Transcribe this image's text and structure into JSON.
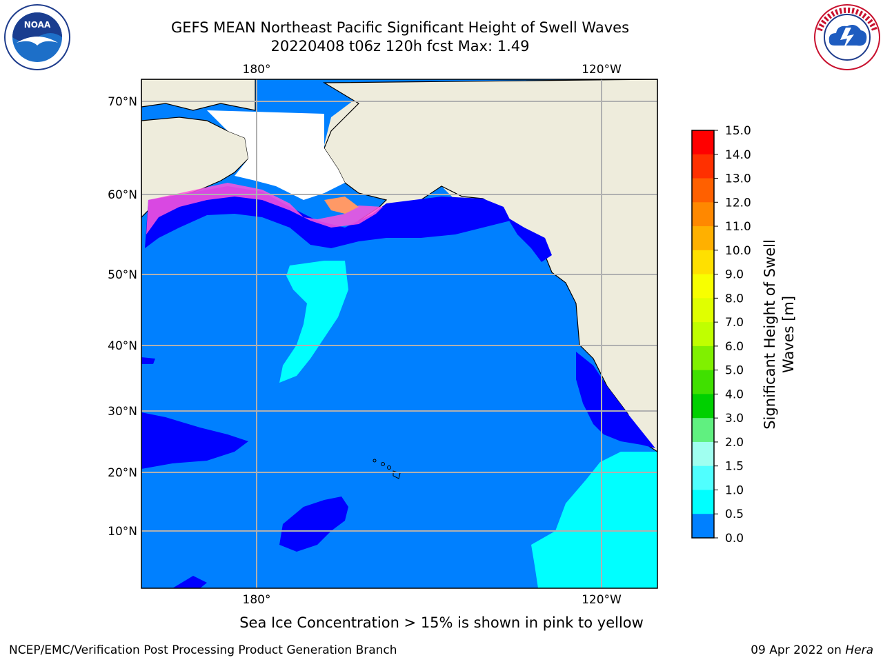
{
  "title_line1": "GEFS MEAN Northeast Pacific Significant Height of Swell Waves",
  "title_line2": "20220408 t06z 120h fcst   Max: 1.49",
  "logos": {
    "left": "noaa-logo",
    "right": "nws-logo"
  },
  "map": {
    "top_lon_labels": [
      "180°",
      "120°W"
    ],
    "bottom_lon_labels": [
      "180°",
      "120°W"
    ],
    "lat_labels": [
      "70°N",
      "60°N",
      "50°N",
      "40°N",
      "30°N",
      "20°N",
      "10°N"
    ]
  },
  "colorbar": {
    "label_line1": "Significant Height of Swell",
    "label_line2": "Waves [m]",
    "ticks": [
      "15.0",
      "14.0",
      "13.0",
      "12.0",
      "11.0",
      "10.0",
      "9.0",
      "8.0",
      "7.0",
      "6.0",
      "5.0",
      "4.0",
      "3.0",
      "2.0",
      "1.5",
      "1.0",
      "0.5",
      "0.0"
    ],
    "colors": [
      "#ff0000",
      "#ff3000",
      "#ff6000",
      "#ff8800",
      "#ffb000",
      "#ffe000",
      "#f8ff00",
      "#e0ff00",
      "#c0ff00",
      "#80f000",
      "#40e000",
      "#00d000",
      "#60f080",
      "#a0fff0",
      "#50ffff",
      "#00ffff",
      "#0080ff",
      "#0000ff"
    ]
  },
  "caption": "Sea Ice Concentration > 15% is shown in pink to yellow",
  "footer_left": "NCEP/EMC/Verification Post Processing Product Generation Branch",
  "footer_right_prefix": "09 Apr 2022 on ",
  "footer_right_host": "Hera"
}
